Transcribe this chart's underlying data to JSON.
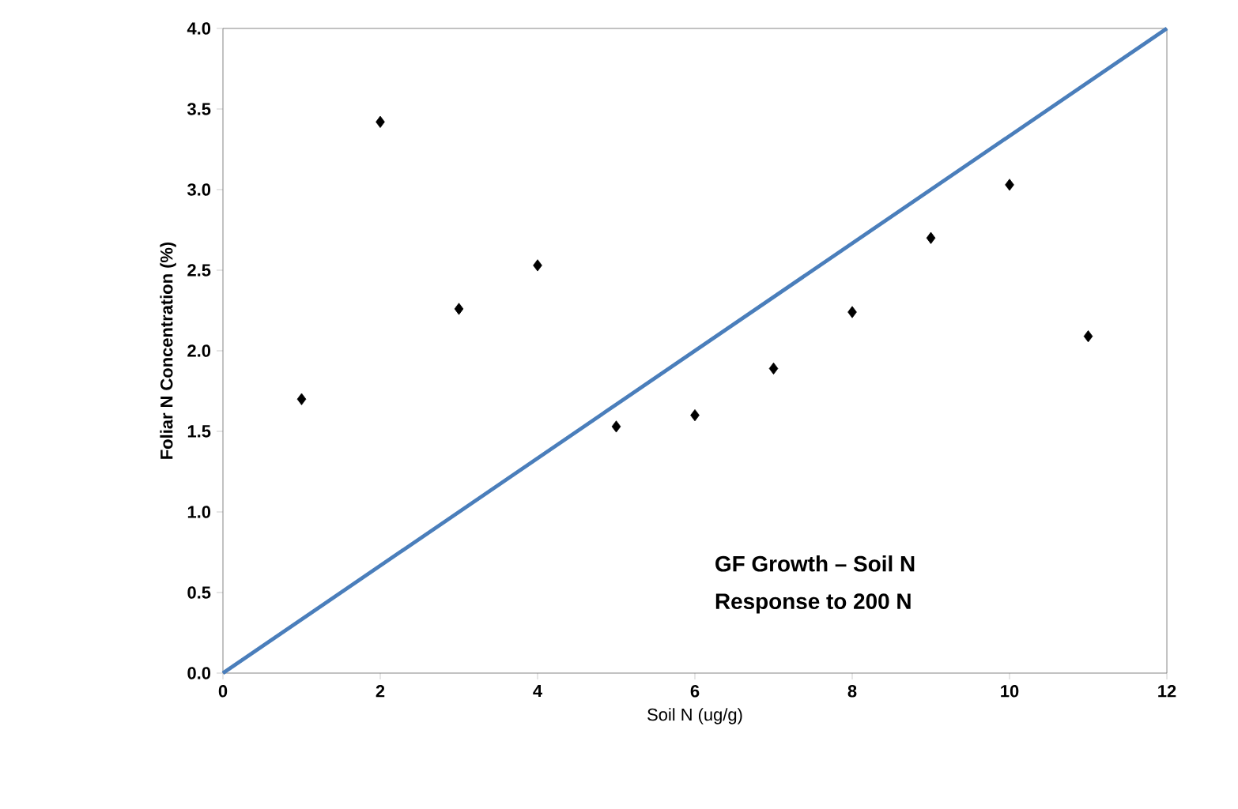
{
  "chart_data": {
    "type": "scatter",
    "xlabel": "Soil N (ug/g)",
    "ylabel": "Foliar N Concentration (%)",
    "xlim": [
      0,
      12
    ],
    "ylim": [
      0,
      4.0
    ],
    "xticks": [
      0,
      2,
      4,
      6,
      8,
      10,
      12
    ],
    "yticks": [
      {
        "value": 0,
        "label": "0.0"
      },
      {
        "value": 0.5,
        "label": "0.5"
      },
      {
        "value": 1,
        "label": "1.0"
      },
      {
        "value": 1.5,
        "label": "1.5"
      },
      {
        "value": 2,
        "label": "2.0"
      },
      {
        "value": 2.5,
        "label": "2.5"
      },
      {
        "value": 3,
        "label": "3.0"
      },
      {
        "value": 3.5,
        "label": "3.5"
      },
      {
        "value": 4,
        "label": "4.0"
      }
    ],
    "annotations": [
      "GF Growth – Soil N",
      "Response to 200 N"
    ],
    "series": [
      {
        "color": "#000000",
        "marker": "diamond",
        "x": [
          1,
          2,
          3,
          4,
          5,
          6,
          7,
          8,
          9,
          10,
          11
        ],
        "values": [
          1.7,
          3.42,
          2.26,
          2.53,
          1.53,
          1.6,
          1.89,
          2.24,
          2.7,
          3.03,
          2.09
        ]
      },
      {
        "type": "line",
        "color": "#4a7ebb",
        "marker": "none",
        "x": [
          0,
          12
        ],
        "values": [
          0,
          4.0
        ]
      }
    ]
  }
}
